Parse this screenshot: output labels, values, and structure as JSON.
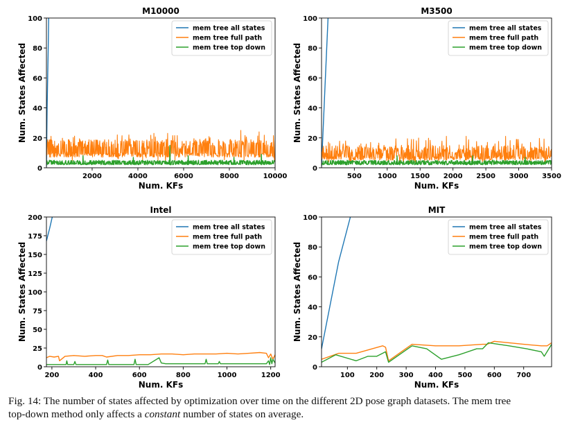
{
  "series_names": [
    "mem tree all states",
    "mem tree full path",
    "mem tree top down"
  ],
  "colors": {
    "all_states": "#1f77b4",
    "full_path": "#ff7f0e",
    "top_down": "#2ca02c"
  },
  "caption": {
    "prefix": "Fig. 14: The number of states affected by optimization over time on the different 2D pose graph datasets. The mem tree",
    "middle": "top-down method only affects a ",
    "emph": "constant",
    "suffix": " number of states on average."
  },
  "chart_data": [
    {
      "type": "line",
      "title": "M10000",
      "xlabel": "Num. KFs",
      "ylabel": "Num. States Affected",
      "xlim": [
        1,
        10000
      ],
      "ylim": [
        0,
        100
      ],
      "xticks": [
        2000,
        4000,
        6000,
        8000,
        10000
      ],
      "yticks": [
        0,
        20,
        40,
        60,
        80,
        100
      ],
      "grid": false,
      "legend": "top-right",
      "series": [
        {
          "name": "mem tree all states",
          "x": [
            1,
            30,
            80,
            120
          ],
          "y": [
            1,
            40,
            80,
            120
          ]
        },
        {
          "name": "mem tree full path",
          "band": {
            "low": 4,
            "high": 22,
            "typical": [
              7,
              16
            ]
          },
          "peaks": [
            [
              5300,
              23
            ],
            [
              8500,
              25
            ],
            [
              9300,
              24
            ],
            [
              4700,
              23
            ],
            [
              3100,
              22
            ]
          ]
        },
        {
          "name": "mem tree top down",
          "band": {
            "low": 2,
            "high": 5,
            "typical": [
              2,
              5
            ]
          },
          "peaks": [
            [
              1600,
              8
            ],
            [
              3800,
              7
            ],
            [
              5400,
              15
            ],
            [
              6200,
              8
            ],
            [
              8200,
              7
            ],
            [
              9400,
              9
            ]
          ]
        }
      ]
    },
    {
      "type": "line",
      "title": "M3500",
      "xlabel": "Num. KFs",
      "ylabel": "Num. States Affected",
      "xlim": [
        1,
        3500
      ],
      "ylim": [
        0,
        100
      ],
      "xticks": [
        500,
        1000,
        1500,
        2000,
        2500,
        3000,
        3500
      ],
      "yticks": [
        0,
        20,
        40,
        60,
        80,
        100
      ],
      "grid": false,
      "legend": "top-right",
      "series": [
        {
          "name": "mem tree all states",
          "x": [
            1,
            50,
            100,
            150
          ],
          "y": [
            1,
            50,
            100,
            150
          ]
        },
        {
          "name": "mem tree full path",
          "band": {
            "low": 3,
            "high": 20,
            "typical": [
              5,
              12
            ]
          },
          "peaks": [
            [
              1900,
              21
            ],
            [
              2200,
              21
            ],
            [
              2800,
              21
            ],
            [
              1400,
              19
            ],
            [
              600,
              16
            ]
          ]
        },
        {
          "name": "mem tree top down",
          "band": {
            "low": 2,
            "high": 5,
            "typical": [
              2,
              4
            ]
          },
          "peaks": [
            [
              1150,
              8
            ],
            [
              2300,
              8
            ],
            [
              3100,
              7
            ]
          ]
        }
      ]
    },
    {
      "type": "line",
      "title": "Intel",
      "xlabel": "Num. KFs",
      "ylabel": "Num. States Affected",
      "xlim": [
        175,
        1220
      ],
      "ylim": [
        0,
        200
      ],
      "xticks": [
        200,
        400,
        600,
        800,
        1000,
        1200
      ],
      "yticks": [
        0,
        25,
        50,
        75,
        100,
        125,
        150,
        175,
        200
      ],
      "grid": false,
      "legend": "top-right",
      "series": [
        {
          "name": "mem tree all states",
          "x": [
            175,
            190,
            200,
            210
          ],
          "y": [
            168,
            185,
            198,
            210
          ]
        },
        {
          "name": "mem tree full path",
          "x": [
            175,
            190,
            210,
            230,
            235,
            260,
            300,
            350,
            400,
            430,
            450,
            500,
            550,
            600,
            650,
            700,
            750,
            800,
            850,
            900,
            950,
            1000,
            1050,
            1100,
            1150,
            1180,
            1190,
            1200,
            1210,
            1220
          ],
          "y": [
            12,
            14,
            13,
            14,
            8,
            14,
            15,
            14,
            15,
            15,
            13,
            15,
            15,
            16,
            16,
            17,
            17,
            16,
            17,
            17,
            17,
            18,
            17,
            18,
            19,
            18,
            12,
            17,
            10,
            16
          ]
        },
        {
          "name": "mem tree top down",
          "x": [
            175,
            200,
            265,
            268,
            272,
            300,
            305,
            310,
            400,
            450,
            455,
            460,
            500,
            575,
            580,
            585,
            640,
            690,
            700,
            720,
            760,
            800,
            850,
            880,
            900,
            905,
            910,
            960,
            965,
            970,
            1000,
            1150,
            1180,
            1190,
            1195,
            1200,
            1205,
            1210,
            1220
          ],
          "y": [
            3,
            3,
            3,
            8,
            3,
            3,
            7,
            3,
            3,
            3,
            9,
            3,
            3,
            3,
            10,
            3,
            3,
            12,
            5,
            4,
            4,
            4,
            4,
            4,
            4,
            10,
            4,
            4,
            7,
            4,
            4,
            4,
            4,
            8,
            3,
            12,
            4,
            10,
            5
          ]
        }
      ]
    },
    {
      "type": "line",
      "title": "MIT",
      "xlabel": "Num. KFs",
      "ylabel": "Num. States Affected",
      "xlim": [
        12,
        795
      ],
      "ylim": [
        0,
        100
      ],
      "xticks": [
        100,
        200,
        300,
        400,
        500,
        600,
        700
      ],
      "yticks": [
        0,
        20,
        40,
        60,
        80,
        100
      ],
      "grid": false,
      "legend": "top-right",
      "series": [
        {
          "name": "mem tree all states",
          "x": [
            12,
            70,
            110,
            130
          ],
          "y": [
            12,
            70,
            100,
            120
          ]
        },
        {
          "name": "mem tree full path",
          "x": [
            12,
            70,
            130,
            220,
            230,
            240,
            320,
            400,
            480,
            560,
            575,
            600,
            650,
            700,
            760,
            780,
            795
          ],
          "y": [
            5,
            9,
            9,
            14,
            13,
            4,
            15,
            14,
            14,
            15,
            15,
            17,
            16,
            15,
            14,
            14,
            16
          ]
        },
        {
          "name": "mem tree top down",
          "x": [
            12,
            60,
            130,
            170,
            200,
            230,
            240,
            320,
            370,
            420,
            480,
            540,
            560,
            580,
            650,
            710,
            760,
            770,
            795
          ],
          "y": [
            3,
            8,
            4,
            7,
            7,
            10,
            3,
            14,
            12,
            5,
            8,
            12,
            12,
            16,
            14,
            12,
            10,
            7,
            15
          ]
        }
      ]
    }
  ]
}
